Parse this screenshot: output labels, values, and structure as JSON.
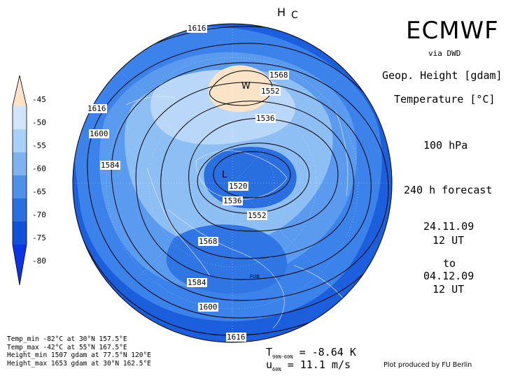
{
  "header": {
    "title": "ECMWF",
    "source": "via DWD"
  },
  "fields": [
    "Geop. Height [gdam]",
    "Temperature [°C]"
  ],
  "level": "100 hPa",
  "forecast": "240 h forecast",
  "init": {
    "date": "24.11.09",
    "time": "12 UT"
  },
  "to_label": "to",
  "valid": {
    "date": "04.12.09",
    "time": "12 UT"
  },
  "legend": {
    "ticks": [
      "-45",
      "-50",
      "-55",
      "-60",
      "-65",
      "-70",
      "-75",
      "-80"
    ],
    "colors": [
      "#fbe3c8",
      "#d2e6fb",
      "#a9d0f7",
      "#7db4f0",
      "#4f91e8",
      "#2a6fe0",
      "#1150d8",
      "#0a34e6"
    ]
  },
  "contour_labels": [
    "1616",
    "1616",
    "1600",
    "1584",
    "1568",
    "1552",
    "1536",
    "1520",
    "1536",
    "1552",
    "1568",
    "1584",
    "1600",
    "1616"
  ],
  "markers": {
    "high": "H",
    "warm": "W",
    "cold": "C",
    "low": "L"
  },
  "stats": [
    "Temp_min -82°C at 30°N 157.5°E",
    "Temp_max -42°C at 55°N 167.5°E",
    "Height_min 1507 gdam at 77.5°N 120°E",
    "Height_max 1653 gdam at 30°N 162.5°E"
  ],
  "fub_label": "FUB",
  "indices": {
    "t_label": "T",
    "t_sub": "90N-60N",
    "t_value": "= -8.64 K",
    "u_label": "u",
    "u_sub": "60N",
    "u_value": "= 11.1 m/s"
  },
  "credit": "Plot produced by FU Berlin"
}
